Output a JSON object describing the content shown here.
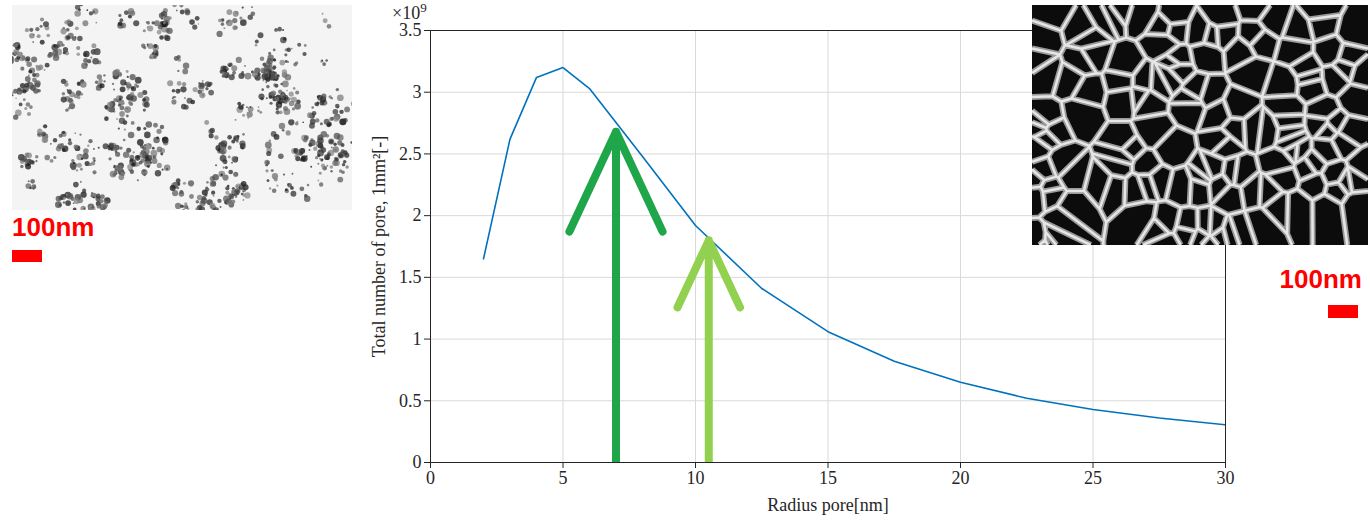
{
  "chart_data": {
    "type": "line",
    "x_label": "Radius pore[nm]",
    "y_label": "Total number of pore, 1mm²[-]",
    "y_multiplier": {
      "prefix": "×10",
      "exponent": 9
    },
    "x": [
      2,
      3,
      4,
      5,
      6,
      8,
      10,
      12.5,
      15,
      17.5,
      20,
      22.5,
      25,
      27.5,
      30
    ],
    "values": [
      1.65,
      2.62,
      3.12,
      3.2,
      3.03,
      2.48,
      1.92,
      1.41,
      1.06,
      0.82,
      0.65,
      0.52,
      0.43,
      0.36,
      0.305
    ],
    "color": "#0072bd",
    "xlim": [
      0,
      30
    ],
    "xticks": [
      0,
      5,
      10,
      15,
      20,
      25,
      30
    ],
    "ylim": [
      0,
      3.5
    ],
    "yticks": [
      0,
      0.5,
      1,
      1.5,
      2,
      2.5,
      3,
      3.5
    ],
    "grid": true,
    "arrows": [
      {
        "x": 7,
        "y": 2.68,
        "color": "#1fa64a"
      },
      {
        "x": 10.5,
        "y": 1.8,
        "color": "#92d050"
      }
    ],
    "scale_bars": [
      "100nm",
      "100nm"
    ]
  }
}
